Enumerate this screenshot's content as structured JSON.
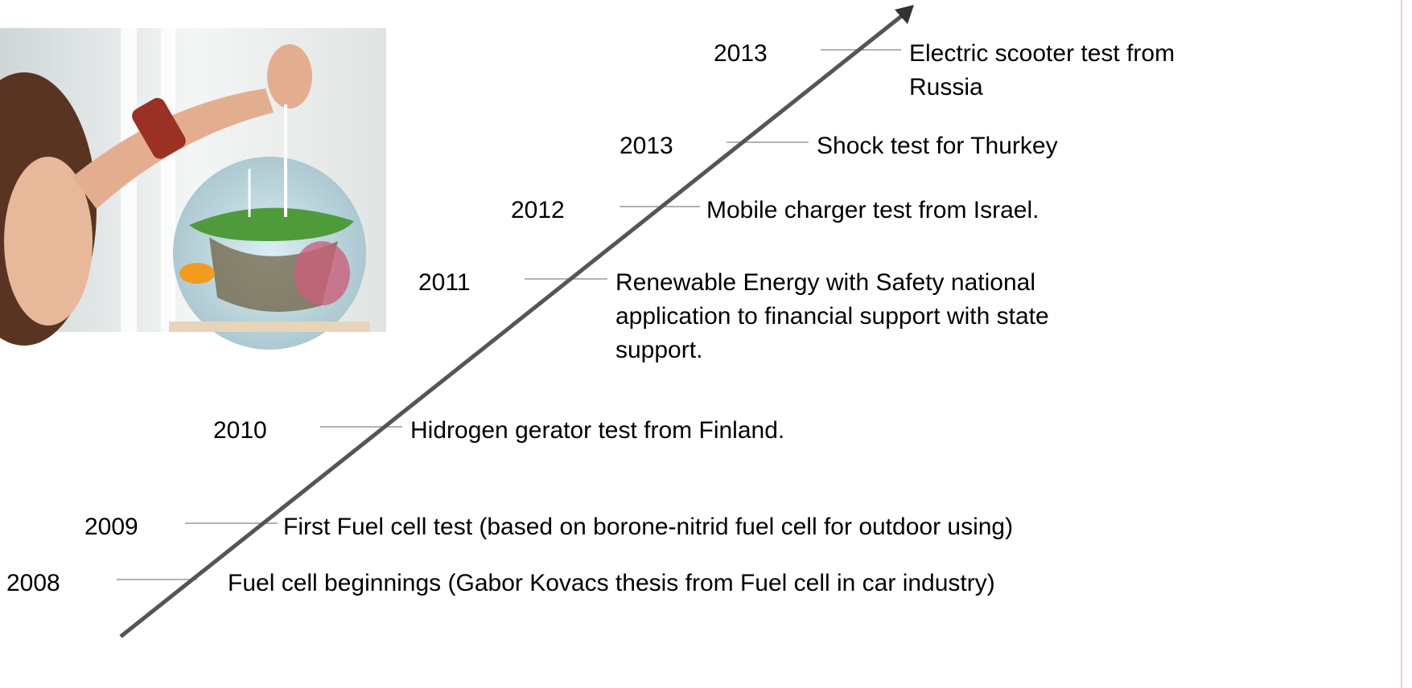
{
  "events": [
    {
      "year": "2008",
      "lines": [
        "Fuel cell beginnings (Gabor Kovacs thesis from Fuel cell in car industry)"
      ]
    },
    {
      "year": "2009",
      "lines": [
        "First Fuel cell test (based on borone-nitrid fuel cell for outdoor using)"
      ]
    },
    {
      "year": "2010",
      "lines": [
        "Hidrogen gerator test from Finland."
      ]
    },
    {
      "year": "2011",
      "lines": [
        "Renewable Energy with Safety national",
        "application to financial support with state",
        "support."
      ]
    },
    {
      "year": "2012",
      "lines": [
        "Mobile charger test from Israel."
      ]
    },
    {
      "year": "2013",
      "lines": [
        "Shock test for Thurkey"
      ]
    },
    {
      "year": "2013",
      "lines": [
        "Electric scooter test from",
        "Russia"
      ]
    }
  ]
}
